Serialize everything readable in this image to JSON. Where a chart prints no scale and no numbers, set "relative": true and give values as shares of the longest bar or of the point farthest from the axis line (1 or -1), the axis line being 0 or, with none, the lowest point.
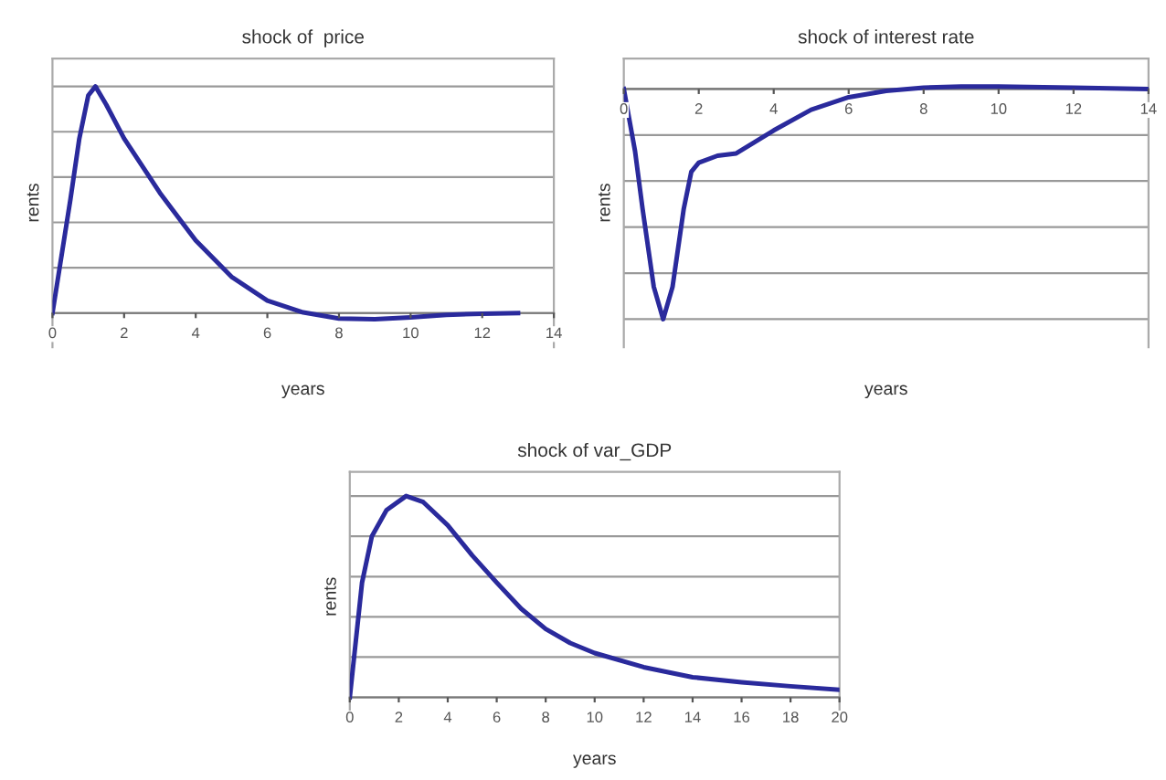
{
  "chart_data": [
    {
      "type": "line",
      "title": "shock of  price",
      "xlabel": "years",
      "ylabel": "rents",
      "relative": true,
      "grid": "y",
      "xlim": [
        0,
        14
      ],
      "xticks": [
        0,
        2,
        4,
        6,
        8,
        10,
        12,
        14
      ],
      "x": [
        0,
        0.5,
        0.75,
        1,
        1.2,
        1.5,
        2,
        3,
        4,
        5,
        6,
        7,
        8,
        9,
        10,
        11,
        12,
        13
      ],
      "series": [
        {
          "color": "#2a2a9c",
          "values": [
            0,
            0.5,
            0.77,
            0.96,
            1,
            0.92,
            0.77,
            0.53,
            0.32,
            0.16,
            0.055,
            0.003,
            -0.024,
            -0.027,
            -0.019,
            -0.008,
            -0.003,
            0
          ]
        }
      ]
    },
    {
      "type": "line",
      "title": "shock of interest rate",
      "xlabel": "years",
      "ylabel": "rents",
      "relative": true,
      "grid": "y",
      "xlim": [
        0,
        14
      ],
      "xticks": [
        0,
        2,
        4,
        6,
        8,
        10,
        12,
        14
      ],
      "x": [
        0,
        0.3,
        0.5,
        0.8,
        1.05,
        1.3,
        1.6,
        1.8,
        2,
        2.5,
        3,
        4,
        5,
        6,
        7,
        8,
        9,
        10,
        12,
        14
      ],
      "series": [
        {
          "color": "#2a2a9c",
          "values": [
            0,
            -0.27,
            -0.52,
            -0.86,
            -1,
            -0.86,
            -0.52,
            -0.36,
            -0.32,
            -0.29,
            -0.28,
            -0.18,
            -0.09,
            -0.036,
            -0.008,
            0.006,
            0.011,
            0.011,
            0.006,
            0
          ]
        }
      ]
    },
    {
      "type": "line",
      "title": "shock of var_GDP",
      "xlabel": "years",
      "ylabel": "rents",
      "relative": true,
      "grid": "y",
      "xlim": [
        0,
        20
      ],
      "xticks": [
        0,
        2,
        4,
        6,
        8,
        10,
        12,
        14,
        16,
        18,
        20
      ],
      "x": [
        0,
        0.5,
        0.9,
        1.5,
        2.3,
        3,
        4,
        5,
        6,
        7,
        8,
        9,
        10,
        12,
        14,
        16,
        18,
        20
      ],
      "series": [
        {
          "color": "#2a2a9c",
          "values": [
            0,
            0.57,
            0.8,
            0.93,
            1,
            0.97,
            0.855,
            0.705,
            0.57,
            0.44,
            0.34,
            0.27,
            0.22,
            0.15,
            0.1,
            0.075,
            0.055,
            0.038
          ]
        }
      ]
    }
  ]
}
